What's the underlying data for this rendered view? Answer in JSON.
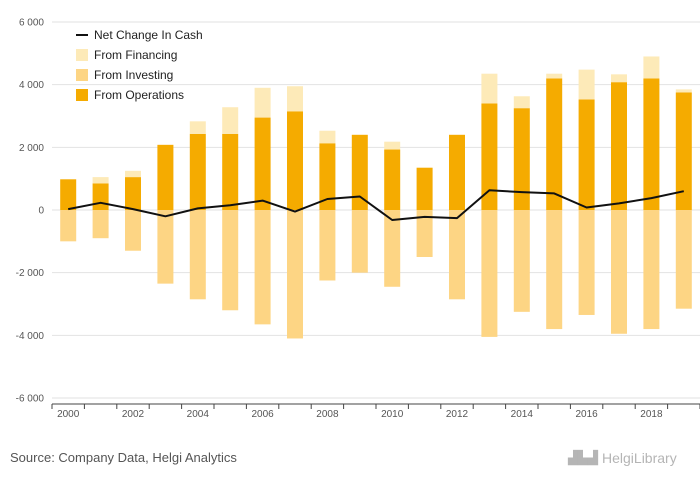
{
  "source_text": "Source: Company Data, Helgi Analytics",
  "logo_text": "HelgiLibrary",
  "colors": {
    "operations": "#f5ab00",
    "investing": "#fdd584",
    "financing": "#fdeab8",
    "net": "#111111",
    "grid": "#e2e2e2"
  },
  "chart_data": {
    "type": "bar",
    "stacked": true,
    "title": "",
    "xlabel": "",
    "ylabel": "",
    "ylim": [
      -6000,
      6000
    ],
    "yticks": [
      6000,
      4000,
      2000,
      0,
      -2000,
      -4000,
      -6000
    ],
    "ytick_labels": [
      "6 000",
      "4 000",
      "2 000",
      "0",
      "-2 000",
      "-4 000",
      "-6 000"
    ],
    "xtick_labels": [
      "2000",
      "2002",
      "2004",
      "2006",
      "2008",
      "2010",
      "2012",
      "2014",
      "2016",
      "2018"
    ],
    "grid": true,
    "legend_position": "top-left",
    "categories": [
      "2000",
      "2001",
      "2002",
      "2003",
      "2004",
      "2005",
      "2006",
      "2007",
      "2008",
      "2009",
      "2010",
      "2011",
      "2012",
      "2013",
      "2014",
      "2015",
      "2016",
      "2017",
      "2018",
      "2019"
    ],
    "series": [
      {
        "name": "Net Change In Cash",
        "type": "line",
        "values": [
          30,
          230,
          30,
          -200,
          50,
          150,
          300,
          -50,
          350,
          430,
          -320,
          -220,
          -260,
          630,
          570,
          530,
          80,
          210,
          380,
          600
        ]
      },
      {
        "name": "From Financing",
        "type": "bar",
        "values": [
          0,
          200,
          200,
          0,
          400,
          850,
          950,
          800,
          400,
          0,
          250,
          0,
          0,
          950,
          380,
          150,
          950,
          250,
          700,
          100
        ]
      },
      {
        "name": "From Investing",
        "type": "bar",
        "values": [
          -1000,
          -900,
          -1300,
          -2350,
          -2850,
          -3200,
          -3650,
          -4100,
          -2250,
          -2000,
          -2450,
          -1500,
          -2850,
          -4050,
          -3250,
          -3800,
          -3350,
          -3950,
          -3800,
          -3150
        ]
      },
      {
        "name": "From Operations",
        "type": "bar",
        "values": [
          980,
          850,
          1050,
          2080,
          2430,
          2430,
          2950,
          3150,
          2130,
          2400,
          1930,
          1350,
          2400,
          3400,
          3250,
          4200,
          3530,
          4080,
          4200,
          3750
        ]
      }
    ]
  }
}
